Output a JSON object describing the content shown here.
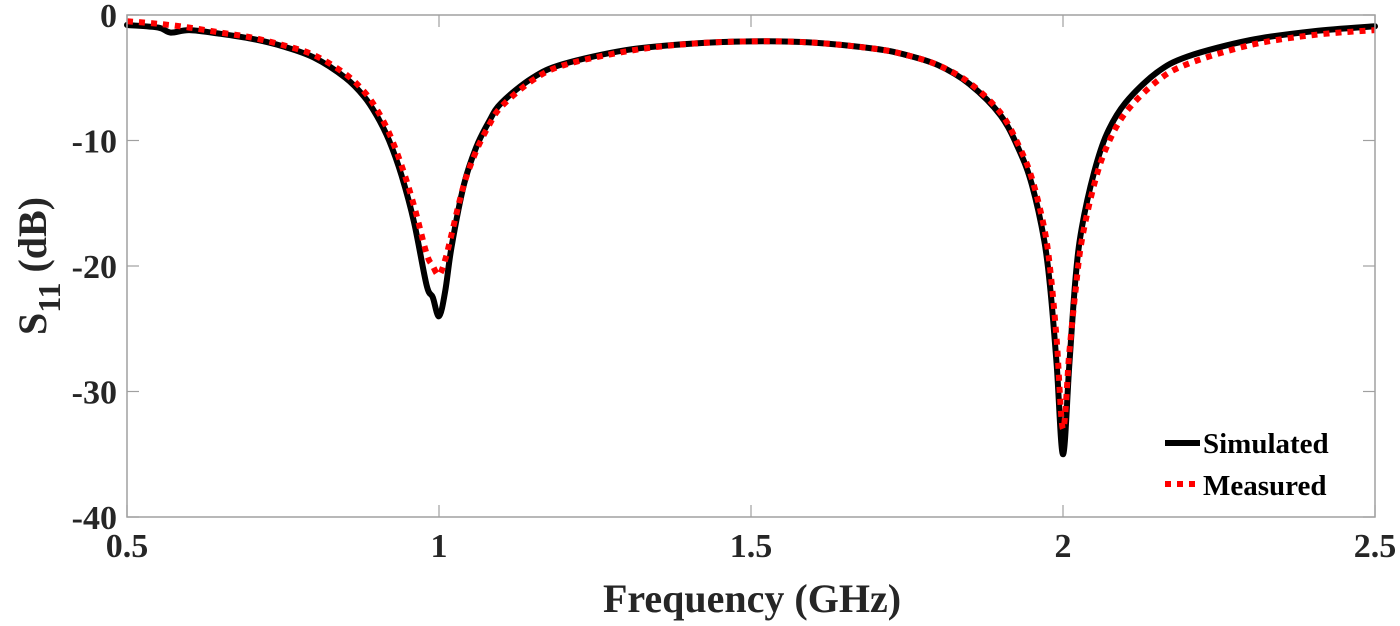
{
  "chart_data": {
    "type": "line",
    "title": "",
    "xlabel": "Frequency (GHz)",
    "ylabel_main": "S",
    "ylabel_sub": "11",
    "ylabel_unit": "(dB)",
    "ylabel": "S11 (dB)",
    "xlim": [
      0.5,
      2.5
    ],
    "ylim": [
      -40,
      0
    ],
    "xticks": [
      0.5,
      1,
      1.5,
      2,
      2.5
    ],
    "xtick_labels": [
      "0.5",
      "1",
      "1.5",
      "2",
      "2.5"
    ],
    "yticks": [
      0,
      -10,
      -20,
      -30,
      -40
    ],
    "ytick_labels": [
      "0",
      "-10",
      "-20",
      "-30",
      "-40"
    ],
    "grid": false,
    "legend_position": "lower right",
    "series": [
      {
        "name": "Simulated",
        "color": "#000000",
        "style": "solid",
        "x": [
          0.5,
          0.55,
          0.57,
          0.6,
          0.65,
          0.7,
          0.75,
          0.8,
          0.85,
          0.88,
          0.9,
          0.92,
          0.94,
          0.96,
          0.98,
          0.99,
          1.0,
          1.01,
          1.02,
          1.04,
          1.06,
          1.08,
          1.1,
          1.15,
          1.2,
          1.3,
          1.4,
          1.5,
          1.6,
          1.7,
          1.75,
          1.8,
          1.85,
          1.9,
          1.93,
          1.95,
          1.97,
          1.98,
          1.99,
          2.0,
          2.01,
          2.02,
          2.03,
          2.05,
          2.07,
          2.1,
          2.15,
          2.2,
          2.3,
          2.4,
          2.5
        ],
        "y": [
          -0.8,
          -1.0,
          -1.4,
          -1.2,
          -1.5,
          -1.9,
          -2.5,
          -3.4,
          -5.0,
          -6.5,
          -8.0,
          -10.0,
          -12.8,
          -16.5,
          -21.5,
          -22.5,
          -24.0,
          -22.0,
          -18.5,
          -13.5,
          -10.5,
          -8.5,
          -7.0,
          -5.0,
          -3.9,
          -2.8,
          -2.3,
          -2.1,
          -2.2,
          -2.7,
          -3.2,
          -4.0,
          -5.5,
          -8.0,
          -10.8,
          -13.5,
          -18.0,
          -22.0,
          -28.0,
          -35.0,
          -28.0,
          -21.0,
          -17.0,
          -12.5,
          -9.5,
          -7.0,
          -4.6,
          -3.3,
          -2.0,
          -1.3,
          -0.9
        ]
      },
      {
        "name": "Measured",
        "color": "#ff0000",
        "style": "dotted",
        "x": [
          0.5,
          0.55,
          0.6,
          0.65,
          0.7,
          0.75,
          0.8,
          0.85,
          0.88,
          0.9,
          0.92,
          0.94,
          0.96,
          0.98,
          0.99,
          1.0,
          1.01,
          1.02,
          1.04,
          1.06,
          1.08,
          1.1,
          1.15,
          1.2,
          1.3,
          1.4,
          1.5,
          1.6,
          1.7,
          1.75,
          1.8,
          1.85,
          1.9,
          1.93,
          1.95,
          1.97,
          1.98,
          1.99,
          2.0,
          2.01,
          2.02,
          2.03,
          2.05,
          2.07,
          2.1,
          2.15,
          2.2,
          2.3,
          2.4,
          2.5
        ],
        "y": [
          -0.5,
          -0.7,
          -1.0,
          -1.4,
          -1.8,
          -2.4,
          -3.2,
          -4.7,
          -6.1,
          -7.5,
          -9.4,
          -12.0,
          -15.2,
          -19.0,
          -20.0,
          -20.7,
          -19.5,
          -17.5,
          -13.5,
          -10.8,
          -8.8,
          -7.3,
          -5.2,
          -4.0,
          -2.9,
          -2.3,
          -2.1,
          -2.2,
          -2.7,
          -3.2,
          -4.0,
          -5.4,
          -7.8,
          -10.5,
          -13.0,
          -17.0,
          -20.5,
          -26.0,
          -33.0,
          -27.0,
          -22.0,
          -18.0,
          -13.5,
          -10.5,
          -7.8,
          -5.3,
          -3.9,
          -2.4,
          -1.6,
          -1.2
        ]
      }
    ]
  },
  "legend": {
    "items": [
      {
        "label": "Simulated",
        "color": "#000000",
        "style": "solid"
      },
      {
        "label": "Measured",
        "color": "#ff0000",
        "style": "dotted"
      }
    ]
  },
  "colors": {
    "axis": "#a0a0a0",
    "text": "#262626",
    "simulated": "#000000",
    "measured": "#ff0000"
  }
}
